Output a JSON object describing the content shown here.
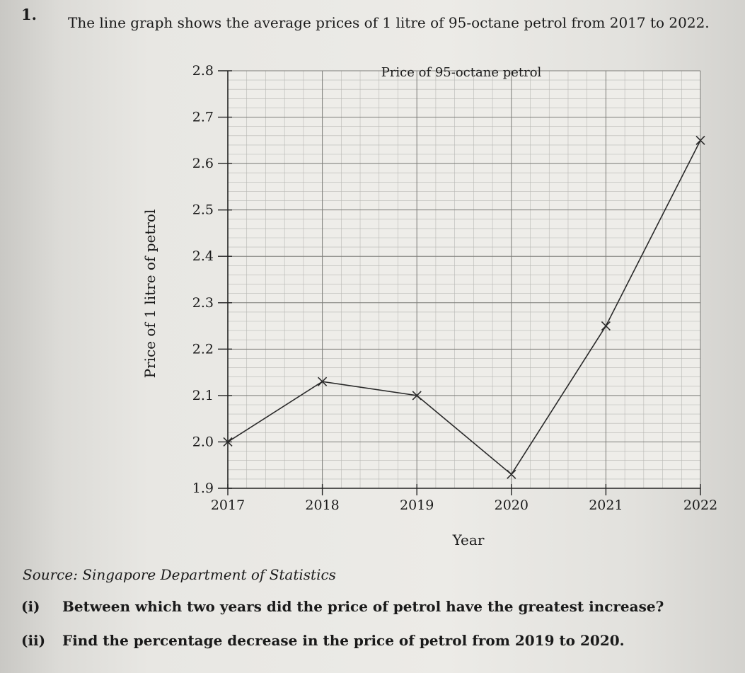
{
  "question": {
    "number": "1.",
    "intro": "The line graph shows the average prices of 1 litre of 95-octane petrol from 2017 to 2022."
  },
  "chart_data": {
    "type": "line",
    "title": "Price of 95-octane petrol",
    "xlabel": "Year",
    "ylabel": "Price of 1 litre of petrol",
    "x": [
      "2017",
      "2018",
      "2019",
      "2020",
      "2021",
      "2022"
    ],
    "y_ticks": [
      "1.9",
      "2.0",
      "2.1",
      "2.2",
      "2.3",
      "2.4",
      "2.5",
      "2.6",
      "2.7",
      "2.8"
    ],
    "ylim": [
      1.9,
      2.8
    ],
    "grid": true,
    "marker": "cross",
    "series": [
      {
        "values": [
          2.0,
          2.13,
          2.1,
          1.93,
          2.25,
          2.65
        ]
      }
    ]
  },
  "source": "Source: Singapore Department of Statistics",
  "parts": [
    {
      "label": "(i)",
      "text": "Between which two years did the price of petrol have the greatest increase?"
    },
    {
      "label": "(ii)",
      "text": "Find the percentage decrease in the price of petrol from 2019 to 2020."
    }
  ]
}
